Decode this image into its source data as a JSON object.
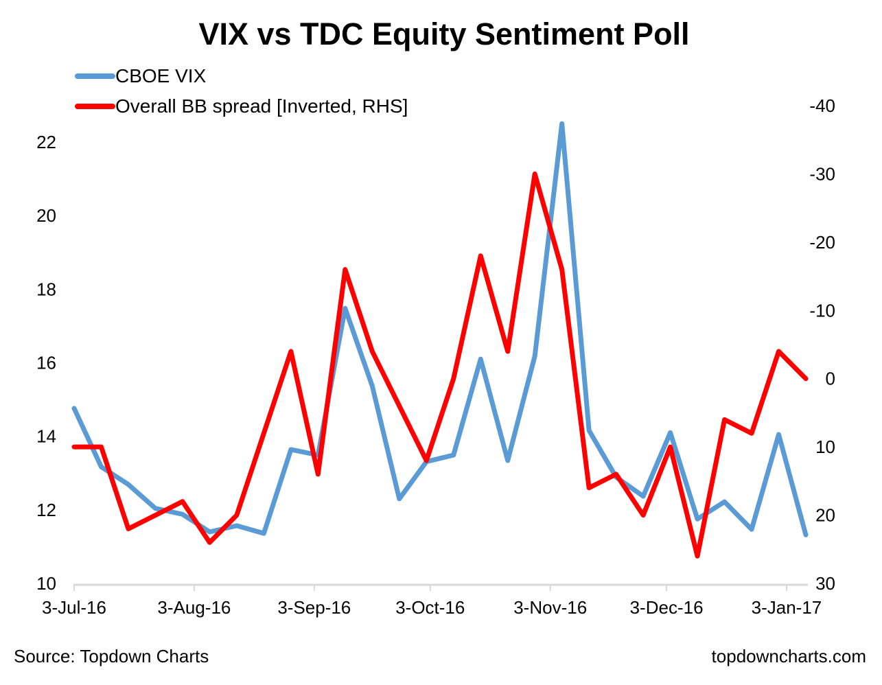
{
  "chart_data": {
    "type": "line",
    "title": "VIX vs TDC Equity Sentiment Poll",
    "xlabel": "",
    "ylabel": "",
    "y2label": "",
    "x": [
      "3-Jul-16",
      "10-Jul-16",
      "17-Jul-16",
      "24-Jul-16",
      "31-Jul-16",
      "7-Aug-16",
      "14-Aug-16",
      "21-Aug-16",
      "28-Aug-16",
      "4-Sep-16",
      "11-Sep-16",
      "18-Sep-16",
      "25-Sep-16",
      "2-Oct-16",
      "9-Oct-16",
      "16-Oct-16",
      "23-Oct-16",
      "30-Oct-16",
      "6-Nov-16",
      "13-Nov-16",
      "20-Nov-16",
      "27-Nov-16",
      "4-Dec-16",
      "11-Dec-16",
      "18-Dec-16",
      "25-Dec-16",
      "1-Jan-17",
      "8-Jan-17"
    ],
    "x_tick_labels": [
      "3-Jul-16",
      "3-Aug-16",
      "3-Sep-16",
      "3-Oct-16",
      "3-Nov-16",
      "3-Dec-16",
      "3-Jan-17"
    ],
    "x_tick_index": [
      0,
      4.43,
      8.86,
      13.14,
      17.57,
      21.86,
      26.29
    ],
    "ylim": [
      10,
      22.5
    ],
    "y_ticks": [
      10,
      12,
      14,
      16,
      18,
      20,
      22
    ],
    "y2lim": [
      -40,
      30
    ],
    "y2_inverted": true,
    "y2_ticks": [
      -40,
      -30,
      -20,
      -10,
      0,
      10,
      20,
      30
    ],
    "grid": false,
    "legend_position": "top-left",
    "series": [
      {
        "name": "CBOE VIX",
        "axis": "left",
        "color": "#5B9BD5",
        "values": [
          14.76,
          13.17,
          12.69,
          12.04,
          11.88,
          11.4,
          11.57,
          11.36,
          13.64,
          13.49,
          17.48,
          15.37,
          12.3,
          13.31,
          13.49,
          16.1,
          13.34,
          16.18,
          22.5,
          14.16,
          12.89,
          12.37,
          14.1,
          11.75,
          12.22,
          11.47,
          14.05,
          11.32
        ]
      },
      {
        "name": "Overall BB spread [Inverted, RHS]",
        "axis": "right",
        "color": "#FF0000",
        "values": [
          10,
          10,
          22,
          20,
          18,
          24,
          20,
          8,
          -4,
          14,
          -16,
          -4,
          4,
          12,
          0,
          -18,
          -4,
          -30,
          -16,
          16,
          14,
          20,
          10,
          26,
          6,
          8,
          -4,
          0
        ]
      }
    ]
  },
  "footer": {
    "source": "Source: Topdown Charts",
    "website": "topdowncharts.com"
  }
}
